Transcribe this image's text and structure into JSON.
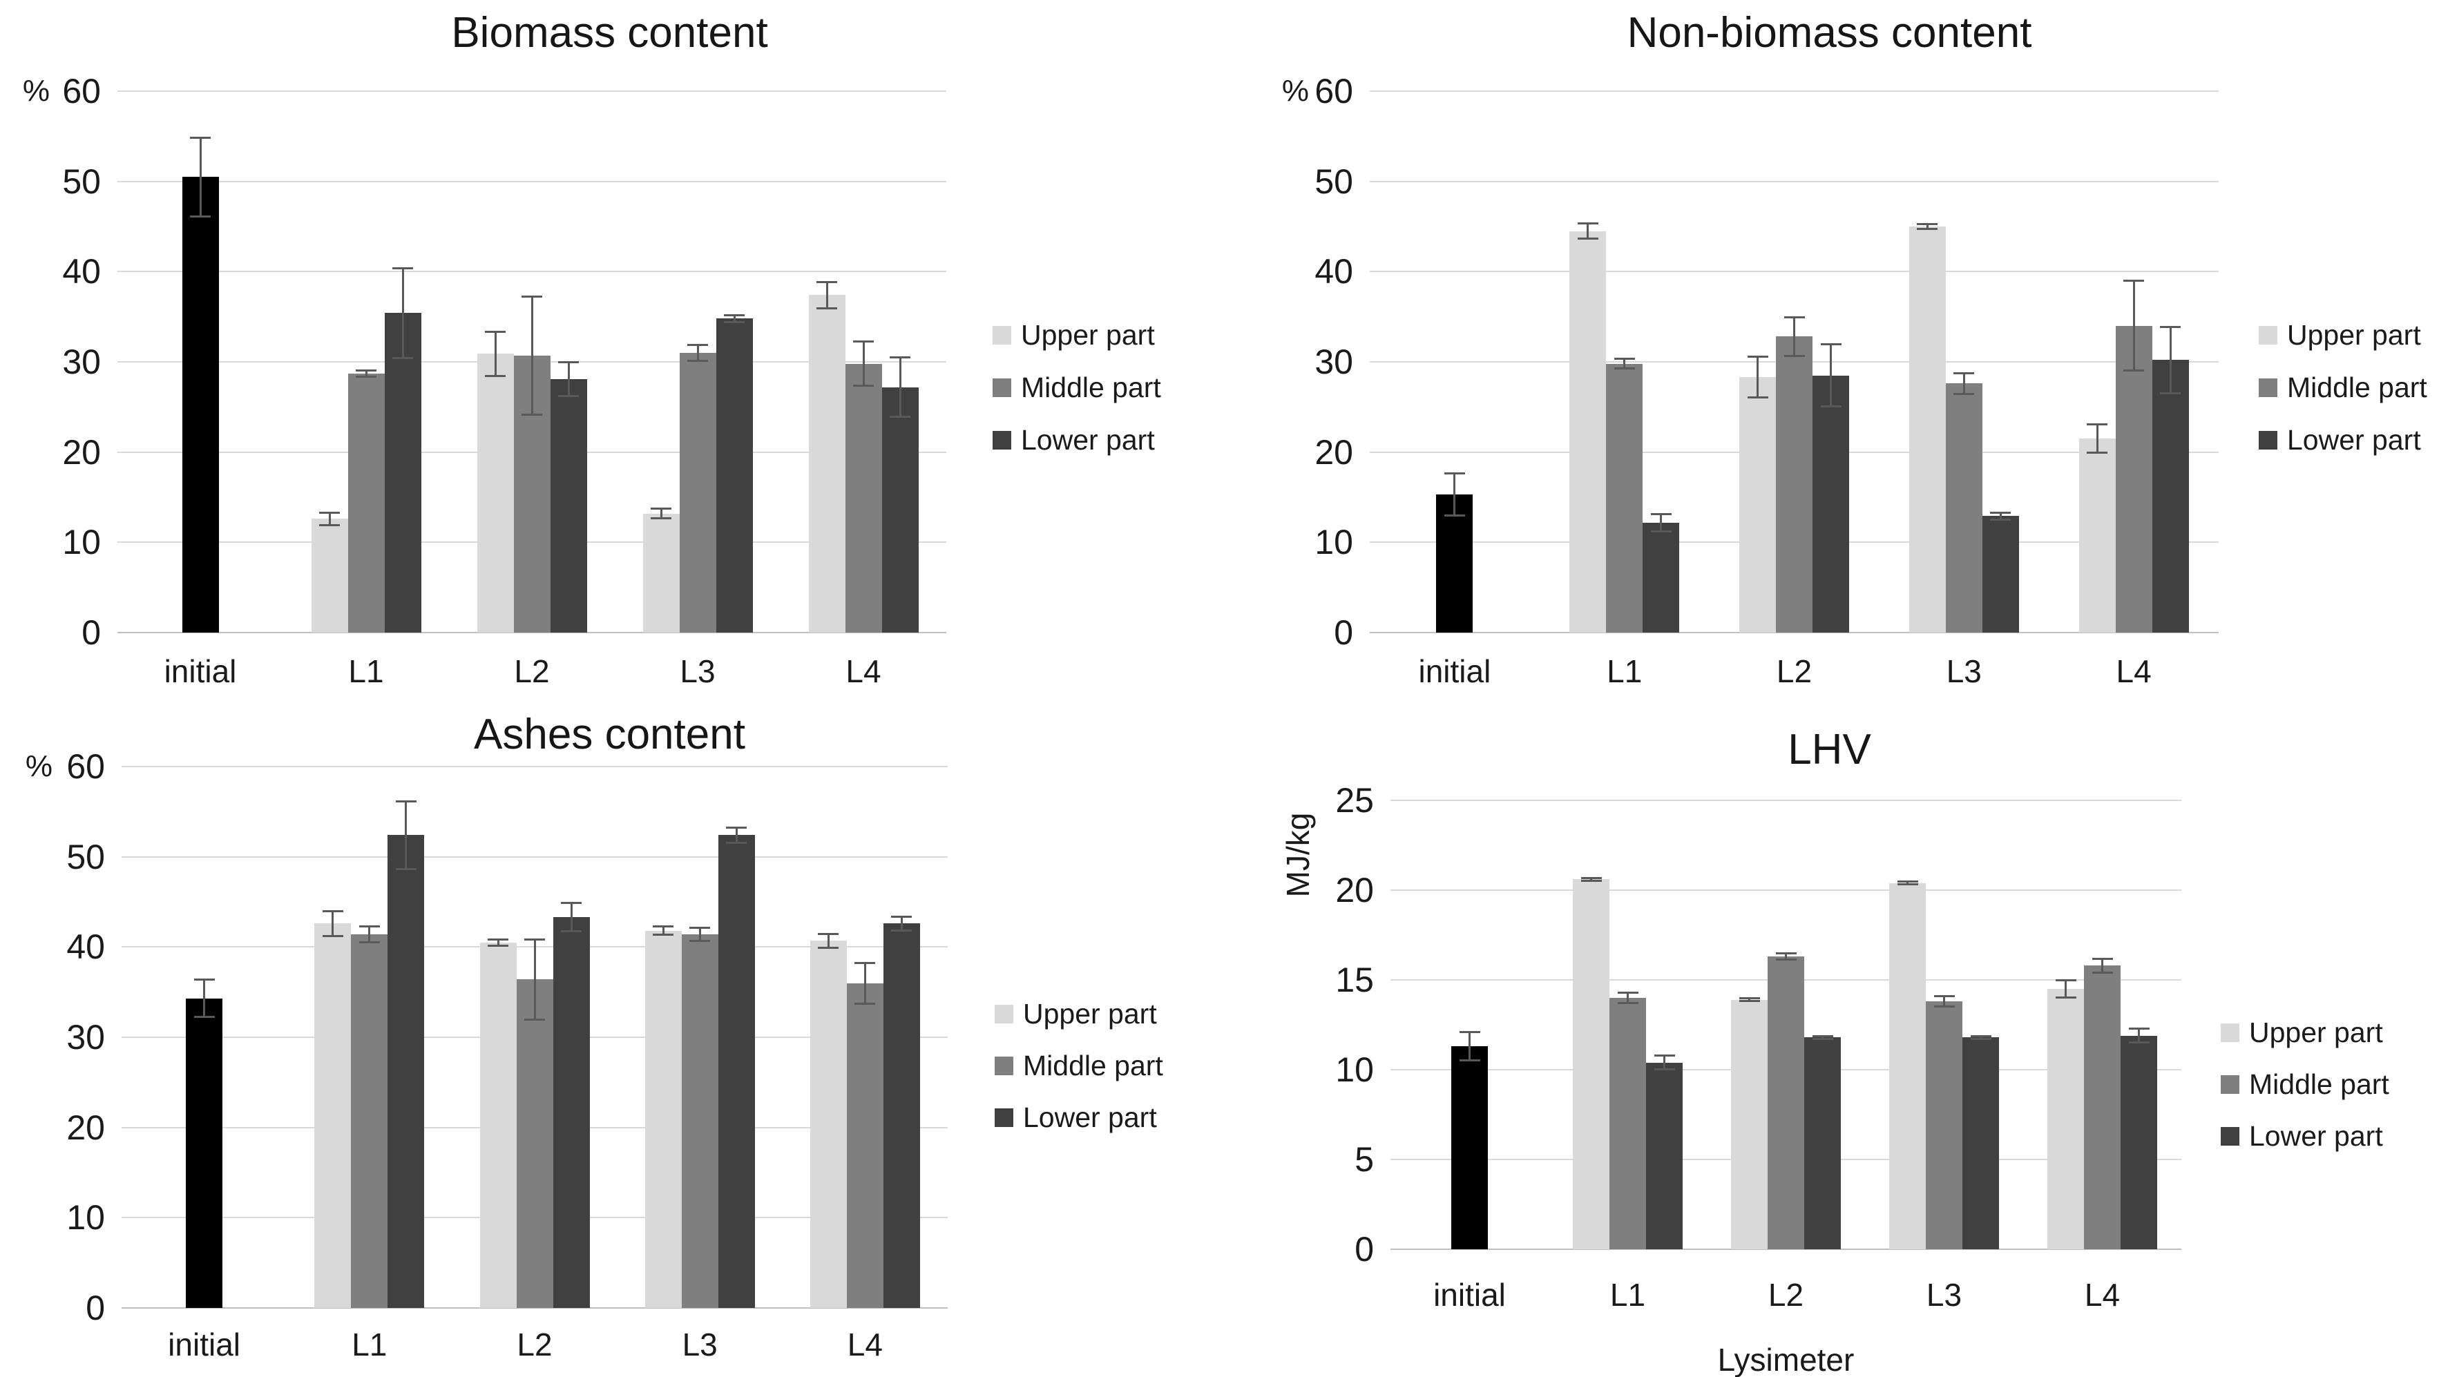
{
  "page": {
    "background": "#ffffff"
  },
  "colors": {
    "text": "#1a1a1a",
    "gridline": "#d9d9d9",
    "axis_line": "#bfbfbf",
    "error_bar": "#595959",
    "series_initial": "#000000",
    "series_upper": "#d9d9d9",
    "series_middle": "#7f7f7f",
    "series_lower": "#404040"
  },
  "chart_data": [
    {
      "type": "bar",
      "title": "Biomass content",
      "unit": "%",
      "unit_orientation": "horizontal",
      "xlabel": "",
      "categories": [
        "initial",
        "L1",
        "L2",
        "L3",
        "L4"
      ],
      "ylim": [
        0,
        60
      ],
      "ytick_step": 10,
      "grid": true,
      "legend_position": "right",
      "legend_items": [
        "Upper part",
        "Middle part",
        "Lower part"
      ],
      "series": [
        {
          "name": "initial",
          "color_key": "series_initial",
          "in_legend": false,
          "values": [
            50.5,
            null,
            null,
            null,
            null
          ],
          "errors": [
            4.4,
            null,
            null,
            null,
            null
          ]
        },
        {
          "name": "Upper part",
          "color_key": "series_upper",
          "in_legend": true,
          "values": [
            null,
            12.6,
            30.9,
            13.2,
            37.4
          ],
          "errors": [
            null,
            0.7,
            2.5,
            0.6,
            1.5
          ]
        },
        {
          "name": "Middle part",
          "color_key": "series_middle",
          "in_legend": true,
          "values": [
            null,
            28.7,
            30.7,
            31.0,
            29.8
          ],
          "errors": [
            null,
            0.4,
            6.6,
            0.9,
            2.5
          ]
        },
        {
          "name": "Lower part",
          "color_key": "series_lower",
          "in_legend": true,
          "values": [
            null,
            35.4,
            28.1,
            34.8,
            27.2
          ],
          "errors": [
            null,
            5.0,
            1.9,
            0.4,
            3.3
          ]
        }
      ]
    },
    {
      "type": "bar",
      "title": "Non-biomass content",
      "unit": "%",
      "unit_orientation": "horizontal",
      "xlabel": "",
      "categories": [
        "initial",
        "L1",
        "L2",
        "L3",
        "L4"
      ],
      "ylim": [
        0,
        60
      ],
      "ytick_step": 10,
      "grid": true,
      "legend_position": "right",
      "legend_items": [
        "Upper part",
        "Middle part",
        "Lower part"
      ],
      "series": [
        {
          "name": "initial",
          "color_key": "series_initial",
          "in_legend": false,
          "values": [
            15.3,
            null,
            null,
            null,
            null
          ],
          "errors": [
            2.4,
            null,
            null,
            null,
            null
          ]
        },
        {
          "name": "Upper part",
          "color_key": "series_upper",
          "in_legend": true,
          "values": [
            null,
            44.5,
            28.3,
            45.0,
            21.5
          ],
          "errors": [
            null,
            0.9,
            2.3,
            0.3,
            1.6
          ]
        },
        {
          "name": "Middle part",
          "color_key": "series_middle",
          "in_legend": true,
          "values": [
            null,
            29.8,
            32.8,
            27.6,
            34.0
          ],
          "errors": [
            null,
            0.6,
            2.2,
            1.2,
            5.0
          ]
        },
        {
          "name": "Lower part",
          "color_key": "series_lower",
          "in_legend": true,
          "values": [
            null,
            12.2,
            28.5,
            12.9,
            30.2
          ],
          "errors": [
            null,
            1.0,
            3.5,
            0.4,
            3.7
          ]
        }
      ]
    },
    {
      "type": "bar",
      "title": "Ashes content",
      "unit": "%",
      "unit_orientation": "horizontal",
      "xlabel": "",
      "categories": [
        "initial",
        "L1",
        "L2",
        "L3",
        "L4"
      ],
      "ylim": [
        0,
        60
      ],
      "ytick_step": 10,
      "grid": true,
      "legend_position": "right",
      "legend_items": [
        "Upper part",
        "Middle part",
        "Lower part"
      ],
      "series": [
        {
          "name": "initial",
          "color_key": "series_initial",
          "in_legend": false,
          "values": [
            34.3,
            null,
            null,
            null,
            null
          ],
          "errors": [
            2.1,
            null,
            null,
            null,
            null
          ]
        },
        {
          "name": "Upper part",
          "color_key": "series_upper",
          "in_legend": true,
          "values": [
            null,
            42.6,
            40.5,
            41.8,
            40.7
          ],
          "errors": [
            null,
            1.4,
            0.4,
            0.5,
            0.8
          ]
        },
        {
          "name": "Middle part",
          "color_key": "series_middle",
          "in_legend": true,
          "values": [
            null,
            41.4,
            36.4,
            41.4,
            36.0
          ],
          "errors": [
            null,
            0.9,
            4.5,
            0.8,
            2.3
          ]
        },
        {
          "name": "Lower part",
          "color_key": "series_lower",
          "in_legend": true,
          "values": [
            null,
            52.4,
            43.3,
            52.4,
            42.6
          ],
          "errors": [
            null,
            3.8,
            1.6,
            0.9,
            0.8
          ]
        }
      ]
    },
    {
      "type": "bar",
      "title": "LHV",
      "unit": "MJ/kg",
      "unit_orientation": "vertical",
      "xlabel": "Lysimeter",
      "categories": [
        "initial",
        "L1",
        "L2",
        "L3",
        "L4"
      ],
      "ylim": [
        0,
        25
      ],
      "ytick_step": 5,
      "grid": true,
      "legend_position": "right",
      "legend_items": [
        "Upper part",
        "Middle part",
        "Lower part"
      ],
      "series": [
        {
          "name": "initial",
          "color_key": "series_initial",
          "in_legend": false,
          "values": [
            11.3,
            null,
            null,
            null,
            null
          ],
          "errors": [
            0.8,
            null,
            null,
            null,
            null
          ]
        },
        {
          "name": "Upper part",
          "color_key": "series_upper",
          "in_legend": true,
          "values": [
            null,
            20.6,
            13.9,
            20.4,
            14.5
          ],
          "errors": [
            null,
            0.1,
            0.1,
            0.1,
            0.5
          ]
        },
        {
          "name": "Middle part",
          "color_key": "series_middle",
          "in_legend": true,
          "values": [
            null,
            14.0,
            16.3,
            13.8,
            15.8
          ],
          "errors": [
            null,
            0.3,
            0.2,
            0.3,
            0.4
          ]
        },
        {
          "name": "Lower part",
          "color_key": "series_lower",
          "in_legend": true,
          "values": [
            null,
            10.4,
            11.8,
            11.8,
            11.9
          ],
          "errors": [
            null,
            0.4,
            0.1,
            0.1,
            0.4
          ]
        }
      ]
    }
  ]
}
